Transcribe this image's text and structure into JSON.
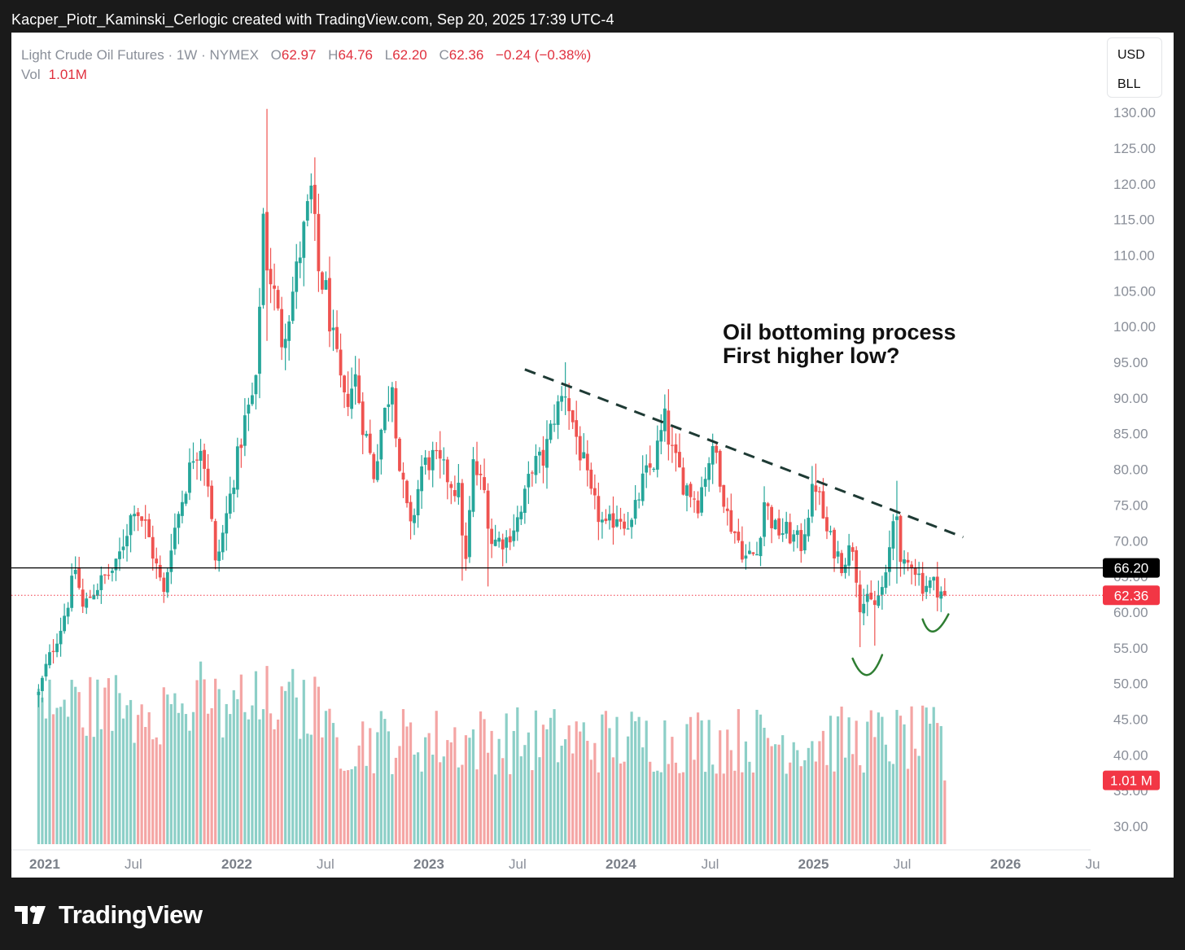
{
  "credit": "Kacper_Piotr_Kaminski_Cerlogic created with TradingView.com, Sep 20, 2025 17:39 UTC-4",
  "legend": {
    "symbol": "Light Crude Oil Futures · 1W · NYMEX",
    "open_label": "O",
    "open": "62.97",
    "high_label": "H",
    "high": "64.76",
    "low_label": "L",
    "low": "62.20",
    "close_label": "C",
    "close": "62.36",
    "change": "−0.24 (−0.38%)",
    "vol_label": "Vol",
    "vol": "1.01M"
  },
  "currency_box": {
    "currency": "USD",
    "unit": "BLL"
  },
  "annotation": {
    "line1": "Oil bottoming process",
    "line2": "First higher low?"
  },
  "brand": {
    "name": "TradingView",
    "logo_icon": "tradingview-logo-icon"
  },
  "colors": {
    "up": "#26a69a",
    "down": "#ef5350",
    "vol_up": "#8ccfc7",
    "vol_down": "#f4a5a4",
    "price_tag": "#f23645",
    "black_tag": "#000000",
    "trend_line": "#1e3a34",
    "arc": "#2e7d32"
  },
  "chart_data": {
    "type": "candlestick",
    "timeframe": "1W",
    "y_axis": {
      "min": 27.5,
      "max": 131,
      "ticks": [
        130,
        125,
        120,
        115,
        110,
        105,
        100,
        95,
        90,
        85,
        80,
        75,
        70,
        65,
        60,
        55,
        50,
        45,
        40,
        35,
        30
      ]
    },
    "x_axis": {
      "ticks": [
        {
          "label": "2021",
          "date": "2021-01-01",
          "major": true
        },
        {
          "label": "Jul",
          "date": "2021-07-01",
          "major": false
        },
        {
          "label": "2022",
          "date": "2022-01-01",
          "major": true
        },
        {
          "label": "Jul",
          "date": "2022-07-01",
          "major": false
        },
        {
          "label": "2023",
          "date": "2023-01-01",
          "major": true
        },
        {
          "label": "Jul",
          "date": "2023-07-01",
          "major": false
        },
        {
          "label": "2024",
          "date": "2024-01-01",
          "major": true
        },
        {
          "label": "Jul",
          "date": "2024-07-01",
          "major": false
        },
        {
          "label": "2025",
          "date": "2025-01-01",
          "major": true
        },
        {
          "label": "Jul",
          "date": "2025-07-01",
          "major": false
        },
        {
          "label": "2026",
          "date": "2026-01-01",
          "major": true
        },
        {
          "label": "Ju",
          "date": "2026-07-01",
          "major": false
        }
      ]
    },
    "price_path": [
      [
        "2020-12-28",
        48.5
      ],
      [
        "2021-01-11",
        52.3
      ],
      [
        "2021-02-08",
        57.9
      ],
      [
        "2021-02-22",
        61.5
      ],
      [
        "2021-03-08",
        66.1
      ],
      [
        "2021-03-22",
        60.5
      ],
      [
        "2021-04-12",
        63.1
      ],
      [
        "2021-05-03",
        64.9
      ],
      [
        "2021-05-24",
        66.3
      ],
      [
        "2021-06-14",
        71.6
      ],
      [
        "2021-06-28",
        75.1
      ],
      [
        "2021-07-19",
        72.1
      ],
      [
        "2021-08-02",
        68.3
      ],
      [
        "2021-08-23",
        62.3
      ],
      [
        "2021-09-06",
        69.7
      ],
      [
        "2021-09-27",
        75.9
      ],
      [
        "2021-10-18",
        82.1
      ],
      [
        "2021-11-01",
        83.6
      ],
      [
        "2021-11-15",
        78.4
      ],
      [
        "2021-11-29",
        66.3
      ],
      [
        "2021-12-13",
        70.9
      ],
      [
        "2022-01-03",
        78.9
      ],
      [
        "2022-01-24",
        86.8
      ],
      [
        "2022-02-14",
        91.6
      ],
      [
        "2022-02-28",
        115.7
      ],
      [
        "2022-03-07",
        109.3
      ],
      [
        "2022-03-21",
        104.3
      ],
      [
        "2022-04-04",
        98.3
      ],
      [
        "2022-04-18",
        102.1
      ],
      [
        "2022-05-09",
        110.5
      ],
      [
        "2022-05-30",
        118.9
      ],
      [
        "2022-06-13",
        107.6
      ],
      [
        "2022-06-27",
        104.8
      ],
      [
        "2022-07-11",
        97.6
      ],
      [
        "2022-08-01",
        89.0
      ],
      [
        "2022-08-22",
        92.8
      ],
      [
        "2022-09-05",
        86.8
      ],
      [
        "2022-09-26",
        79.5
      ],
      [
        "2022-10-10",
        85.6
      ],
      [
        "2022-10-31",
        92.6
      ],
      [
        "2022-11-14",
        80.1
      ],
      [
        "2022-12-05",
        71.2
      ],
      [
        "2022-12-26",
        80.3
      ],
      [
        "2023-01-16",
        81.6
      ],
      [
        "2023-02-06",
        79.7
      ],
      [
        "2023-03-06",
        76.7
      ],
      [
        "2023-03-20",
        66.7
      ],
      [
        "2023-04-03",
        80.7
      ],
      [
        "2023-04-24",
        76.8
      ],
      [
        "2023-05-08",
        70.0
      ],
      [
        "2023-06-05",
        70.2
      ],
      [
        "2023-07-03",
        73.9
      ],
      [
        "2023-07-24",
        80.6
      ],
      [
        "2023-08-14",
        81.3
      ],
      [
        "2023-09-04",
        87.5
      ],
      [
        "2023-09-25",
        91.1
      ],
      [
        "2023-10-09",
        86.6
      ],
      [
        "2023-10-30",
        80.5
      ],
      [
        "2023-11-13",
        75.9
      ],
      [
        "2023-12-11",
        71.4
      ],
      [
        "2024-01-01",
        73.8
      ],
      [
        "2024-01-29",
        72.3
      ],
      [
        "2024-02-19",
        78.3
      ],
      [
        "2024-03-11",
        81.0
      ],
      [
        "2024-04-01",
        86.9
      ],
      [
        "2024-04-15",
        82.2
      ],
      [
        "2024-05-06",
        78.3
      ],
      [
        "2024-06-03",
        75.5
      ],
      [
        "2024-06-24",
        81.5
      ],
      [
        "2024-07-08",
        82.2
      ],
      [
        "2024-07-29",
        73.5
      ],
      [
        "2024-09-02",
        67.7
      ],
      [
        "2024-09-23",
        68.2
      ],
      [
        "2024-10-07",
        75.6
      ],
      [
        "2024-10-28",
        71.5
      ],
      [
        "2024-11-18",
        71.2
      ],
      [
        "2024-12-16",
        69.5
      ],
      [
        "2025-01-06",
        76.6
      ],
      [
        "2025-01-13",
        77.9
      ],
      [
        "2025-02-03",
        71.0
      ],
      [
        "2025-03-03",
        67.0
      ],
      [
        "2025-03-24",
        69.4
      ],
      [
        "2025-04-07",
        61.5
      ],
      [
        "2025-05-05",
        61.0
      ],
      [
        "2025-05-26",
        64.5
      ],
      [
        "2025-06-09",
        73.0
      ],
      [
        "2025-06-16",
        74.9
      ],
      [
        "2025-06-23",
        65.5
      ],
      [
        "2025-07-14",
        67.3
      ],
      [
        "2025-08-04",
        63.9
      ],
      [
        "2025-08-25",
        64.0
      ],
      [
        "2025-09-15",
        62.4
      ]
    ],
    "highlights": [
      {
        "date": "2022-03-07",
        "high": 130.5,
        "low": 98.0
      },
      {
        "date": "2022-06-06",
        "high": 123.7,
        "low": 112.0
      },
      {
        "date": "2023-03-13",
        "high": 75.0,
        "low": 64.4
      },
      {
        "date": "2023-05-01",
        "high": 72.0,
        "low": 63.6
      },
      {
        "date": "2023-09-25",
        "high": 95.0,
        "low": 87.6
      },
      {
        "date": "2025-01-13",
        "high": 80.8,
        "low": 76.0
      },
      {
        "date": "2025-04-07",
        "high": 64.8,
        "low": 55.1
      },
      {
        "date": "2025-05-05",
        "high": 62.0,
        "low": 55.3
      },
      {
        "date": "2025-06-16",
        "high": 78.4,
        "low": 64.0
      }
    ],
    "volume_axis": {
      "max_volume_m": 3.25
    },
    "trendline": {
      "start": {
        "date": "2023-07-10",
        "price": 94.0
      },
      "end": {
        "date": "2025-10-20",
        "price": 70.5
      },
      "style": "dashed"
    },
    "horizontal_line": {
      "price": 66.2,
      "label": "66.20"
    },
    "last_price": {
      "price": 62.36,
      "label": "62.36"
    },
    "volume_label": "1.01 M",
    "arcs": [
      {
        "from": {
          "date": "2025-03-24",
          "price": 53.5
        },
        "bottom": {
          "date": "2025-04-21",
          "price": 51.2
        },
        "to": {
          "date": "2025-05-19",
          "price": 54.0
        }
      },
      {
        "from": {
          "date": "2025-08-04",
          "price": 59.0
        },
        "bottom": {
          "date": "2025-08-25",
          "price": 57.3
        },
        "to": {
          "date": "2025-09-22",
          "price": 59.7
        }
      }
    ]
  }
}
